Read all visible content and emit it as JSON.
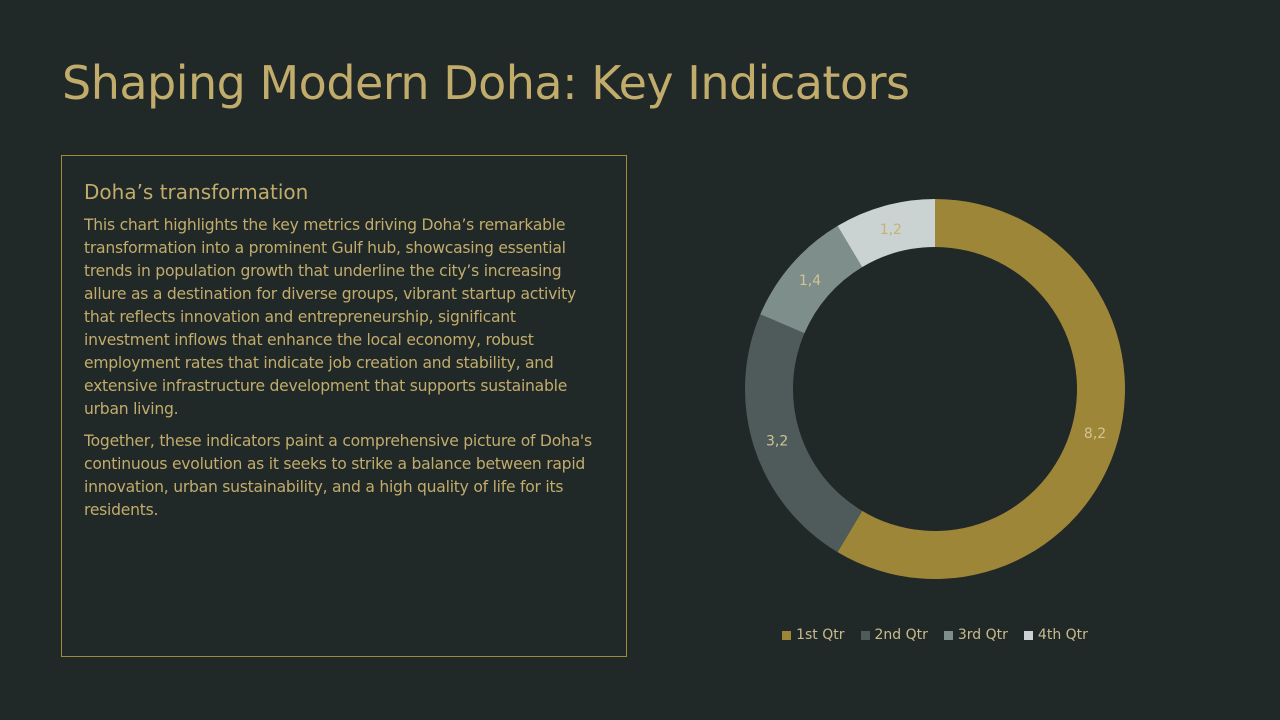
{
  "slide": {
    "title": "Shaping Modern Doha: Key Indicators"
  },
  "panel": {
    "heading": "Doha’s transformation",
    "paragraphs": [
      "This chart highlights the key metrics driving Doha’s remarkable transformation into a prominent Gulf hub, showcasing essential trends in population growth that underline the city’s increasing allure as a destination for diverse groups, vibrant startup activity that reflects innovation and entrepreneurship, significant investment inflows that enhance the local economy, robust employment rates that indicate job creation and stability, and extensive infrastructure development that supports sustainable urban living.",
      "Together, these indicators paint a comprehensive picture of Doha's continuous evolution as it seeks to strike a balance between rapid innovation, urban sustainability, and a high quality of life for its residents."
    ]
  },
  "colors": {
    "background": "#212828",
    "accent": "#c1ac6b",
    "panel_border": "#a08a3f"
  },
  "chart_data": {
    "type": "pie",
    "subtype": "donut",
    "title": "",
    "legend_position": "bottom",
    "slices": [
      {
        "label": "1st Qtr",
        "value": 8.2,
        "display": "8,2",
        "color": "#9e8638",
        "label_color": "#d2c391"
      },
      {
        "label": "2nd Qtr",
        "value": 3.2,
        "display": "3,2",
        "color": "#4e5b5a",
        "label_color": "#d2c391"
      },
      {
        "label": "3rd Qtr",
        "value": 1.4,
        "display": "1,4",
        "color": "#7e8e8b",
        "label_color": "#d2c391"
      },
      {
        "label": "4th Qtr",
        "value": 1.2,
        "display": "1,2",
        "color": "#cbd3d2",
        "label_color": "#c4b271"
      }
    ]
  }
}
